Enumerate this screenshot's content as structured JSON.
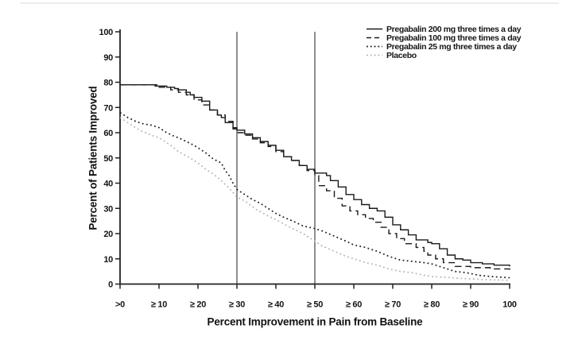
{
  "figure": {
    "background": "#ffffff",
    "line_black": "#1a1a1a",
    "placebo_gray": "#b3b3b3",
    "axis_color": "#222222"
  },
  "chart_data": {
    "type": "line",
    "title": "",
    "xlabel": "Percent Improvement in Pain from Baseline",
    "ylabel": "Percent of Patients Improved",
    "xlim": [
      0,
      100
    ],
    "ylim": [
      0,
      100
    ],
    "grid": false,
    "legend_position": "top-right",
    "y_ticks": [
      0,
      10,
      20,
      30,
      40,
      50,
      60,
      70,
      80,
      90,
      100
    ],
    "x_ticks": [
      {
        "value": 0,
        "label": ">0"
      },
      {
        "value": 10,
        "label": "≥ 10"
      },
      {
        "value": 20,
        "label": "≥ 20"
      },
      {
        "value": 30,
        "label": "≥ 30"
      },
      {
        "value": 40,
        "label": "≥ 40"
      },
      {
        "value": 50,
        "label": "≥ 50"
      },
      {
        "value": 60,
        "label": "≥ 60"
      },
      {
        "value": 70,
        "label": "≥ 70"
      },
      {
        "value": 80,
        "label": "≥ 80"
      },
      {
        "value": 90,
        "label": "≥ 90"
      },
      {
        "value": 100,
        "label": "100"
      }
    ],
    "reference_lines_x": [
      30,
      50
    ],
    "series": [
      {
        "name": "Pregabalin 200 mg three times a day",
        "style": "solid",
        "color": "#1a1a1a",
        "width": 1.4,
        "interpolation": "step-after",
        "points": [
          [
            0,
            79
          ],
          [
            6,
            79
          ],
          [
            9,
            78.5
          ],
          [
            12,
            78
          ],
          [
            14,
            77.5
          ],
          [
            15,
            77
          ],
          [
            17,
            76
          ],
          [
            18,
            75
          ],
          [
            19,
            74
          ],
          [
            21,
            72.5
          ],
          [
            23,
            69
          ],
          [
            25,
            67
          ],
          [
            26,
            66
          ],
          [
            27,
            64
          ],
          [
            29,
            62
          ],
          [
            30,
            61
          ],
          [
            32,
            59.5
          ],
          [
            34,
            58
          ],
          [
            36,
            56.5
          ],
          [
            38,
            55
          ],
          [
            40,
            53
          ],
          [
            42,
            50.5
          ],
          [
            44,
            49
          ],
          [
            46,
            47
          ],
          [
            48,
            45.5
          ],
          [
            50,
            44
          ],
          [
            53,
            43
          ],
          [
            54,
            41
          ],
          [
            56,
            38.5
          ],
          [
            58,
            35.5
          ],
          [
            60,
            33.5
          ],
          [
            62,
            31.5
          ],
          [
            64,
            30
          ],
          [
            66,
            29
          ],
          [
            68,
            26.5
          ],
          [
            70,
            23.5
          ],
          [
            72,
            21.5
          ],
          [
            74,
            19.5
          ],
          [
            76,
            17.5
          ],
          [
            79,
            16.5
          ],
          [
            80,
            16
          ],
          [
            82,
            14
          ],
          [
            84,
            11.5
          ],
          [
            86,
            10
          ],
          [
            88,
            9.5
          ],
          [
            90,
            8.5
          ],
          [
            93,
            8
          ],
          [
            96,
            7.5
          ],
          [
            100,
            7
          ]
        ]
      },
      {
        "name": "Pregabalin 100 mg three times a day",
        "style": "dashed",
        "color": "#1a1a1a",
        "width": 1.4,
        "interpolation": "step-after",
        "points": [
          [
            0,
            79
          ],
          [
            6,
            79
          ],
          [
            10,
            78
          ],
          [
            13,
            77
          ],
          [
            15,
            76
          ],
          [
            17,
            75
          ],
          [
            19,
            73
          ],
          [
            21,
            71
          ],
          [
            23,
            69
          ],
          [
            25,
            67
          ],
          [
            27,
            64.5
          ],
          [
            29,
            61.5
          ],
          [
            30,
            60
          ],
          [
            32,
            59
          ],
          [
            34,
            57.5
          ],
          [
            36,
            56
          ],
          [
            38,
            54.5
          ],
          [
            40,
            52.5
          ],
          [
            42,
            50.5
          ],
          [
            44,
            49
          ],
          [
            46,
            47
          ],
          [
            48,
            45
          ],
          [
            50,
            43
          ],
          [
            51,
            39
          ],
          [
            53,
            37
          ],
          [
            55,
            34
          ],
          [
            57,
            31
          ],
          [
            59,
            29
          ],
          [
            61,
            27.5
          ],
          [
            63,
            26
          ],
          [
            65,
            24.5
          ],
          [
            67,
            22.5
          ],
          [
            69,
            20
          ],
          [
            71,
            18
          ],
          [
            73,
            16
          ],
          [
            76,
            14.5
          ],
          [
            78,
            13
          ],
          [
            79,
            11.5
          ],
          [
            81,
            10
          ],
          [
            83,
            8.5
          ],
          [
            86,
            7
          ],
          [
            90,
            6.5
          ],
          [
            95,
            6
          ],
          [
            100,
            5
          ]
        ]
      },
      {
        "name": "Pregabalin 25 mg three times a day",
        "style": "dotted",
        "color": "#1a1a1a",
        "width": 1.7,
        "interpolation": "linear",
        "points": [
          [
            0,
            68
          ],
          [
            2,
            66
          ],
          [
            4,
            64.5
          ],
          [
            6,
            63.5
          ],
          [
            8,
            63
          ],
          [
            10,
            62
          ],
          [
            12,
            60
          ],
          [
            14,
            58.5
          ],
          [
            15,
            58
          ],
          [
            17,
            56.5
          ],
          [
            19,
            55
          ],
          [
            20,
            54
          ],
          [
            22,
            52
          ],
          [
            24,
            49.5
          ],
          [
            26,
            48
          ],
          [
            27,
            45
          ],
          [
            28,
            43
          ],
          [
            29,
            40
          ],
          [
            30,
            37.5
          ],
          [
            32,
            35.5
          ],
          [
            34,
            33.5
          ],
          [
            36,
            32
          ],
          [
            38,
            30
          ],
          [
            40,
            28
          ],
          [
            42,
            26.5
          ],
          [
            45,
            24.5
          ],
          [
            47,
            23
          ],
          [
            50,
            22
          ],
          [
            52,
            21
          ],
          [
            55,
            19
          ],
          [
            58,
            17
          ],
          [
            60,
            15.5
          ],
          [
            63,
            14.5
          ],
          [
            66,
            13
          ],
          [
            69,
            11
          ],
          [
            72,
            9.5
          ],
          [
            75,
            9
          ],
          [
            78,
            8.5
          ],
          [
            80,
            8
          ],
          [
            83,
            6.5
          ],
          [
            86,
            5
          ],
          [
            89,
            4.5
          ],
          [
            92,
            3.5
          ],
          [
            95,
            3
          ],
          [
            100,
            2.5
          ]
        ]
      },
      {
        "name": "Placebo",
        "style": "dotted",
        "color": "#b3b3b3",
        "width": 1.7,
        "interpolation": "linear",
        "points": [
          [
            0,
            66
          ],
          [
            3,
            63
          ],
          [
            5,
            61
          ],
          [
            8,
            59
          ],
          [
            10,
            58
          ],
          [
            13,
            55
          ],
          [
            15,
            52.5
          ],
          [
            18,
            50
          ],
          [
            20,
            48
          ],
          [
            22,
            45.5
          ],
          [
            24,
            43.5
          ],
          [
            26,
            41
          ],
          [
            28,
            38
          ],
          [
            30,
            34.5
          ],
          [
            32,
            33
          ],
          [
            35,
            29.5
          ],
          [
            38,
            27
          ],
          [
            40,
            25.5
          ],
          [
            43,
            23
          ],
          [
            45,
            21.5
          ],
          [
            47,
            20
          ],
          [
            50,
            17
          ],
          [
            52,
            15
          ],
          [
            55,
            13
          ],
          [
            58,
            11
          ],
          [
            60,
            10
          ],
          [
            63,
            8.5
          ],
          [
            66,
            7.5
          ],
          [
            69,
            6
          ],
          [
            72,
            5
          ],
          [
            75,
            4.5
          ],
          [
            78,
            3.5
          ],
          [
            80,
            3
          ],
          [
            85,
            2.5
          ],
          [
            90,
            2
          ],
          [
            95,
            1.7
          ],
          [
            100,
            1.5
          ]
        ]
      }
    ]
  }
}
